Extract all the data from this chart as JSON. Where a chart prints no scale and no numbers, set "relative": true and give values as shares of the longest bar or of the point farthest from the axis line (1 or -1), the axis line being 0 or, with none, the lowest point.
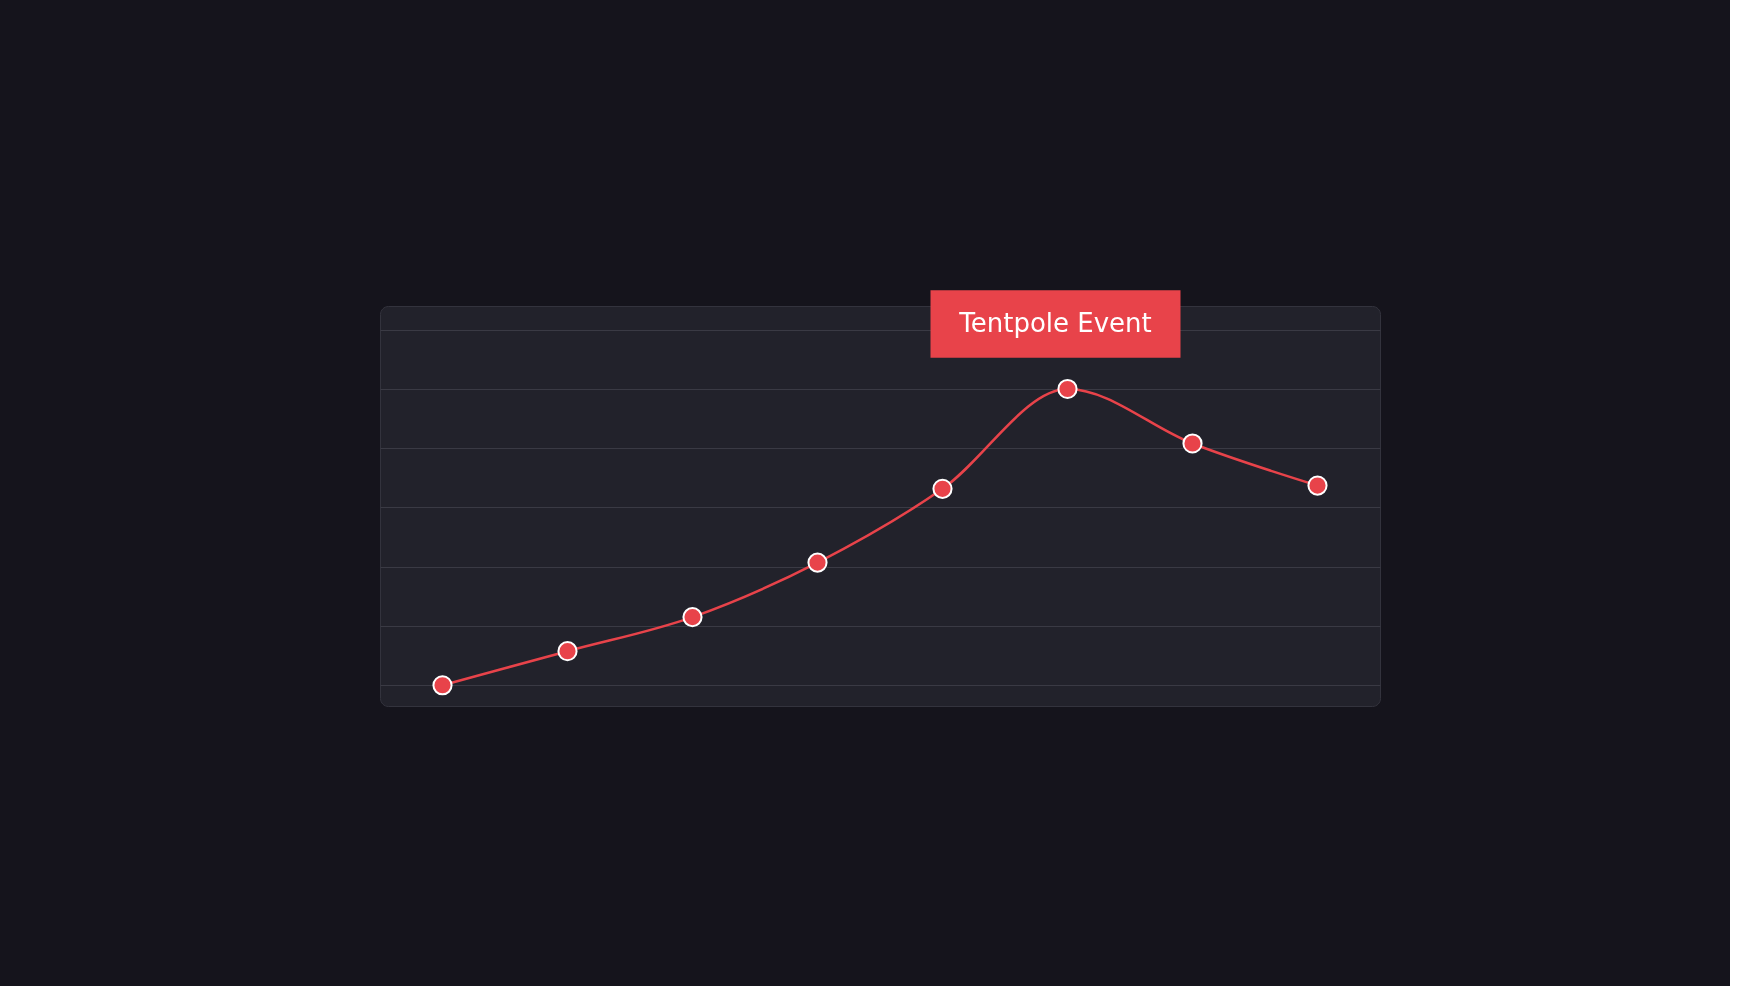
{
  "chart_data": {
    "type": "line",
    "relative": true,
    "categories": [
      null,
      null,
      null,
      null,
      null,
      null,
      null,
      null
    ],
    "series": [
      {
        "color": "#e8434a",
        "values": [
          0,
          0.115,
          0.23,
          0.414,
          0.663,
          1,
          0.816,
          0.674
        ]
      }
    ],
    "annotations": [
      {
        "text": "Tentpole Event",
        "y": 1
      }
    ],
    "grid": "y",
    "marker": "circle",
    "line_style": "solid"
  }
}
